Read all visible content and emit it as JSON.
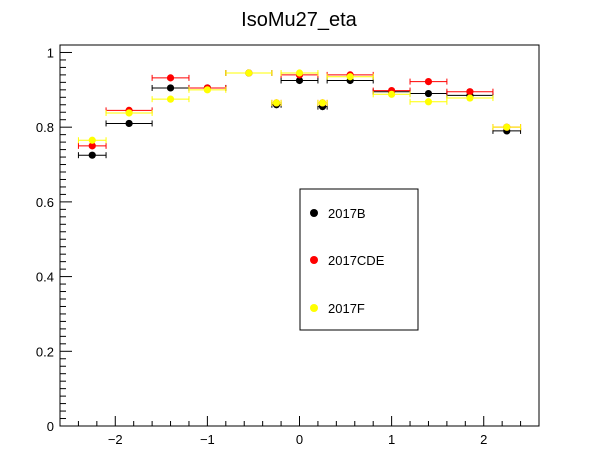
{
  "chart_data": {
    "type": "scatter",
    "title": "IsoMu27_eta",
    "xlabel": "",
    "ylabel": "",
    "xlim": [
      -2.6,
      2.6
    ],
    "ylim": [
      0,
      1.02
    ],
    "x_ticks": [
      -2,
      -1,
      0,
      1,
      2
    ],
    "x_tick_labels": [
      "−2",
      "−1",
      "0",
      "1",
      "2"
    ],
    "y_ticks": [
      0,
      0.2,
      0.4,
      0.6,
      0.8,
      1
    ],
    "y_tick_labels": [
      "0",
      "0.2",
      "0.4",
      "0.6",
      "0.8",
      "1"
    ],
    "grid": false,
    "legend_position": "center",
    "bins": [
      [
        -2.4,
        -2.1
      ],
      [
        -2.1,
        -1.6
      ],
      [
        -1.6,
        -1.2
      ],
      [
        -1.2,
        -0.8
      ],
      [
        -0.8,
        -0.3
      ],
      [
        -0.3,
        -0.2
      ],
      [
        -0.2,
        0.2
      ],
      [
        0.2,
        0.3
      ],
      [
        0.3,
        0.8
      ],
      [
        0.8,
        1.2
      ],
      [
        1.2,
        1.6
      ],
      [
        1.6,
        2.1
      ],
      [
        2.1,
        2.4
      ]
    ],
    "series": [
      {
        "name": "2017B",
        "color": "#000000",
        "x": [
          -2.25,
          -1.85,
          -1.4,
          -1.0,
          -0.55,
          -0.25,
          0.0,
          0.25,
          0.55,
          1.0,
          1.4,
          1.85,
          2.25
        ],
        "values": [
          0.725,
          0.81,
          0.905,
          0.905,
          0.945,
          0.86,
          0.925,
          0.855,
          0.925,
          0.895,
          0.89,
          0.885,
          0.79
        ]
      },
      {
        "name": "2017CDE",
        "color": "#ff0000",
        "x": [
          -2.25,
          -1.85,
          -1.4,
          -1.0,
          -0.55,
          -0.25,
          0.0,
          0.25,
          0.55,
          1.0,
          1.4,
          1.85,
          2.25
        ],
        "values": [
          0.75,
          0.845,
          0.932,
          0.905,
          0.945,
          0.865,
          0.94,
          0.865,
          0.94,
          0.898,
          0.922,
          0.895,
          0.8
        ]
      },
      {
        "name": "2017F",
        "color": "#ffff00",
        "x": [
          -2.25,
          -1.85,
          -1.4,
          -1.0,
          -0.55,
          -0.25,
          0.0,
          0.25,
          0.55,
          1.0,
          1.4,
          1.85,
          2.25
        ],
        "values": [
          0.765,
          0.838,
          0.875,
          0.9,
          0.945,
          0.865,
          0.945,
          0.865,
          0.935,
          0.888,
          0.868,
          0.878,
          0.8
        ]
      }
    ]
  }
}
